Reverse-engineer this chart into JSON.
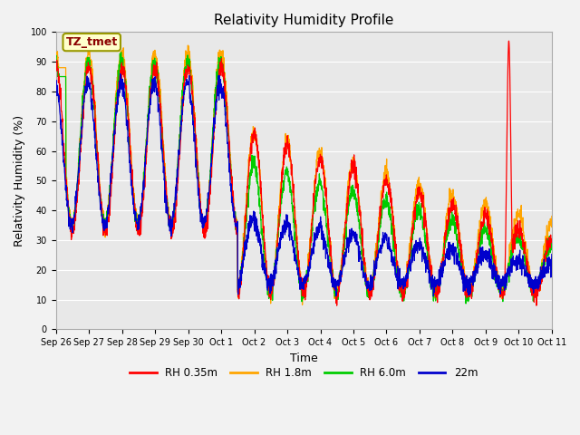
{
  "title": "Relativity Humidity Profile",
  "xlabel": "Time",
  "ylabel": "Relativity Humidity (%)",
  "ylim": [
    0,
    100
  ],
  "annotation_text": "TZ_tmet",
  "annotation_color": "#8B0000",
  "annotation_bg": "#FFFFCC",
  "annotation_border": "#999900",
  "bg_color": "#E8E8E8",
  "fig_bg_color": "#F2F2F2",
  "legend_entries": [
    "RH 0.35m",
    "RH 1.8m",
    "RH 6.0m",
    "22m"
  ],
  "line_colors": [
    "#FF0000",
    "#FFA500",
    "#00CC00",
    "#0000CC"
  ],
  "x_tick_labels": [
    "Sep 26",
    "Sep 27",
    "Sep 28",
    "Sep 29",
    "Sep 30",
    "Oct 1",
    "Oct 2",
    "Oct 3",
    "Oct 4",
    "Oct 5",
    "Oct 6",
    "Oct 7",
    "Oct 8",
    "Oct 9",
    "Oct 10",
    "Oct 11"
  ],
  "n_days": 15,
  "grid_color": "#FFFFFF",
  "title_fontsize": 11,
  "tick_fontsize": 7,
  "label_fontsize": 9
}
